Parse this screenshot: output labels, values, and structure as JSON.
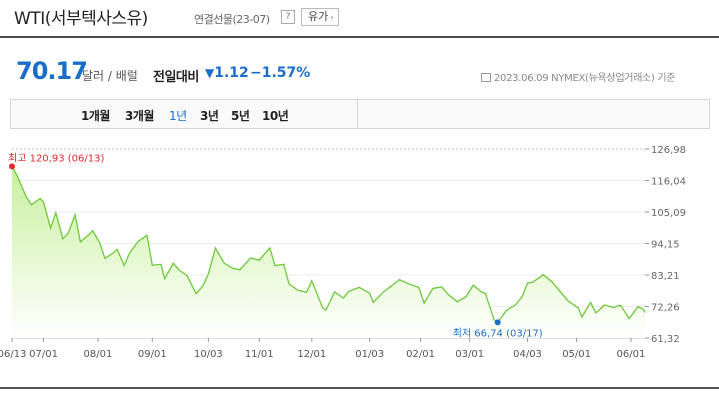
{
  "header": {
    "title": "WTI(서부텍사스유)",
    "subtitle": "연결선물(23-07)",
    "help_label": "?",
    "category_label": "유가",
    "category_chevron": "›"
  },
  "quote": {
    "price": "70.17",
    "unit": "달러 / 배럴",
    "change_label": "전일대비",
    "change_arrow": "▼",
    "change_value": "1.12",
    "change_percent": "−1.57%",
    "date_info": "2023.06.09  NYMEX(뉴욕상업거래소) 기준"
  },
  "tabs": [
    {
      "label": "1개월",
      "active": false
    },
    {
      "label": "3개월",
      "active": false
    },
    {
      "label": "1년",
      "active": true
    },
    {
      "label": "3년",
      "active": false
    },
    {
      "label": "5년",
      "active": false
    },
    {
      "label": "10년",
      "active": false
    }
  ],
  "colors": {
    "line": "#6dc93a",
    "fill_top": "#c8f09e",
    "fill_bottom": "#ffffff",
    "high": "#e0282e",
    "low": "#1a6dc9",
    "accent": "#1a6dc9"
  },
  "chart_data": {
    "type": "area",
    "title": "",
    "xlabel": "",
    "ylabel": "",
    "ylim": [
      61.32,
      126.98
    ],
    "yticks": [
      "126,98",
      "116,04",
      "105,09",
      "94,15",
      "83,21",
      "72,26",
      "61,32"
    ],
    "ytick_values": [
      126.98,
      116.04,
      105.09,
      94.15,
      83.21,
      72.26,
      61.32
    ],
    "xtick_labels": [
      "06/13",
      "07/01",
      "08/01",
      "09/01",
      "10/03",
      "11/01",
      "12/01",
      "01/03",
      "02/01",
      "03/01",
      "04/03",
      "05/01",
      "06/01"
    ],
    "xtick_dates": [
      "2022-06-13",
      "2022-07-01",
      "2022-08-01",
      "2022-09-01",
      "2022-10-03",
      "2022-11-01",
      "2022-12-01",
      "2023-01-03",
      "2023-02-01",
      "2023-03-01",
      "2023-04-03",
      "2023-05-01",
      "2023-06-01"
    ],
    "grid": true,
    "high": {
      "label": "최고 120,93 (06/13)",
      "date": "2022-06-13",
      "value": 120.93
    },
    "low": {
      "label": "최저 66,74 (03/17)",
      "date": "2023-03-17",
      "value": 66.74
    },
    "series": [
      {
        "values": [
          [
            "2022-06-13",
            120.93
          ],
          [
            "2022-06-16",
            117.6
          ],
          [
            "2022-06-21",
            110.5
          ],
          [
            "2022-06-24",
            107.6
          ],
          [
            "2022-06-29",
            109.8
          ],
          [
            "2022-07-01",
            108.4
          ],
          [
            "2022-07-05",
            99.5
          ],
          [
            "2022-07-08",
            104.8
          ],
          [
            "2022-07-12",
            95.8
          ],
          [
            "2022-07-15",
            97.6
          ],
          [
            "2022-07-19",
            104.2
          ],
          [
            "2022-07-22",
            94.7
          ],
          [
            "2022-07-27",
            97.3
          ],
          [
            "2022-07-29",
            98.6
          ],
          [
            "2022-08-02",
            94.4
          ],
          [
            "2022-08-05",
            89.0
          ],
          [
            "2022-08-09",
            90.5
          ],
          [
            "2022-08-12",
            92.1
          ],
          [
            "2022-08-16",
            86.5
          ],
          [
            "2022-08-19",
            90.8
          ],
          [
            "2022-08-24",
            94.9
          ],
          [
            "2022-08-29",
            97.0
          ],
          [
            "2022-09-01",
            86.6
          ],
          [
            "2022-09-06",
            86.9
          ],
          [
            "2022-09-08",
            81.9
          ],
          [
            "2022-09-13",
            87.3
          ],
          [
            "2022-09-16",
            85.1
          ],
          [
            "2022-09-21",
            82.9
          ],
          [
            "2022-09-26",
            76.7
          ],
          [
            "2022-09-30",
            79.5
          ],
          [
            "2022-10-03",
            83.6
          ],
          [
            "2022-10-07",
            92.6
          ],
          [
            "2022-10-12",
            87.3
          ],
          [
            "2022-10-17",
            85.5
          ],
          [
            "2022-10-21",
            85.0
          ],
          [
            "2022-10-27",
            89.1
          ],
          [
            "2022-11-01",
            88.4
          ],
          [
            "2022-11-07",
            92.6
          ],
          [
            "2022-11-10",
            86.5
          ],
          [
            "2022-11-15",
            86.9
          ],
          [
            "2022-11-18",
            80.1
          ],
          [
            "2022-11-23",
            77.9
          ],
          [
            "2022-11-28",
            77.2
          ],
          [
            "2022-12-01",
            81.2
          ],
          [
            "2022-12-07",
            72.0
          ],
          [
            "2022-12-09",
            71.0
          ],
          [
            "2022-12-14",
            77.3
          ],
          [
            "2022-12-19",
            75.2
          ],
          [
            "2022-12-22",
            77.5
          ],
          [
            "2022-12-28",
            78.9
          ],
          [
            "2023-01-03",
            76.9
          ],
          [
            "2023-01-05",
            73.7
          ],
          [
            "2023-01-11",
            77.4
          ],
          [
            "2023-01-17",
            80.2
          ],
          [
            "2023-01-20",
            81.6
          ],
          [
            "2023-01-25",
            80.2
          ],
          [
            "2023-01-31",
            78.9
          ],
          [
            "2023-02-03",
            73.4
          ],
          [
            "2023-02-08",
            78.5
          ],
          [
            "2023-02-13",
            79.1
          ],
          [
            "2023-02-17",
            76.3
          ],
          [
            "2023-02-22",
            73.9
          ],
          [
            "2023-02-27",
            75.7
          ],
          [
            "2023-03-03",
            79.7
          ],
          [
            "2023-03-07",
            77.6
          ],
          [
            "2023-03-10",
            76.7
          ],
          [
            "2023-03-15",
            67.6
          ],
          [
            "2023-03-17",
            66.74
          ],
          [
            "2023-03-22",
            70.9
          ],
          [
            "2023-03-27",
            72.8
          ],
          [
            "2023-03-31",
            75.7
          ],
          [
            "2023-04-03",
            80.4
          ],
          [
            "2023-04-06",
            80.7
          ],
          [
            "2023-04-12",
            83.3
          ],
          [
            "2023-04-17",
            80.8
          ],
          [
            "2023-04-21",
            77.9
          ],
          [
            "2023-04-26",
            74.3
          ],
          [
            "2023-05-02",
            71.7
          ],
          [
            "2023-05-04",
            68.6
          ],
          [
            "2023-05-09",
            73.7
          ],
          [
            "2023-05-12",
            70.0
          ],
          [
            "2023-05-17",
            72.8
          ],
          [
            "2023-05-22",
            71.9
          ],
          [
            "2023-05-26",
            72.7
          ],
          [
            "2023-05-31",
            68.1
          ],
          [
            "2023-06-05",
            72.2
          ],
          [
            "2023-06-08",
            71.3
          ],
          [
            "2023-06-09",
            70.17
          ]
        ]
      }
    ]
  }
}
